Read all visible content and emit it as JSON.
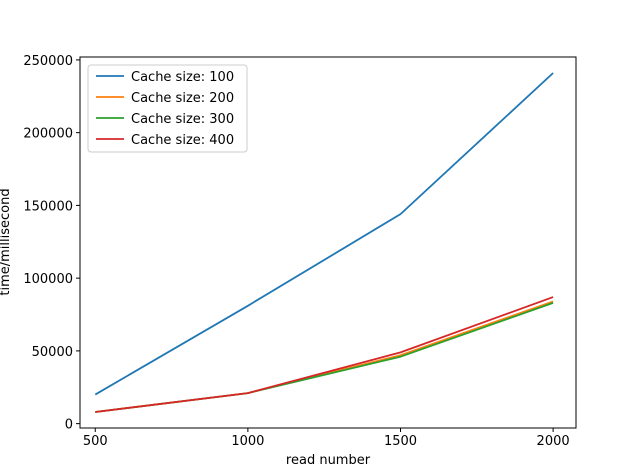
{
  "chart_data": {
    "type": "line",
    "x": [
      500,
      1000,
      1500,
      2000
    ],
    "xlabel": "read number",
    "ylabel": "time/millisecond",
    "xticks": [
      500,
      1000,
      1500,
      2000
    ],
    "yticks": [
      0,
      50000,
      100000,
      150000,
      200000,
      250000
    ],
    "xlim": [
      450,
      2075
    ],
    "ylim": [
      -3000,
      252000
    ],
    "grid": false,
    "legend_position": "top-left",
    "series": [
      {
        "name": "Cache size: 100",
        "color": "#1f77b4",
        "values": [
          20000,
          81000,
          144000,
          241000
        ]
      },
      {
        "name": "Cache size: 200",
        "color": "#ff7f0e",
        "values": [
          8000,
          21000,
          47000,
          84000
        ]
      },
      {
        "name": "Cache size: 300",
        "color": "#2ca02c",
        "values": [
          8000,
          21000,
          46000,
          83000
        ]
      },
      {
        "name": "Cache size: 400",
        "color": "#d62728",
        "values": [
          8000,
          21000,
          49000,
          87000
        ]
      }
    ]
  }
}
